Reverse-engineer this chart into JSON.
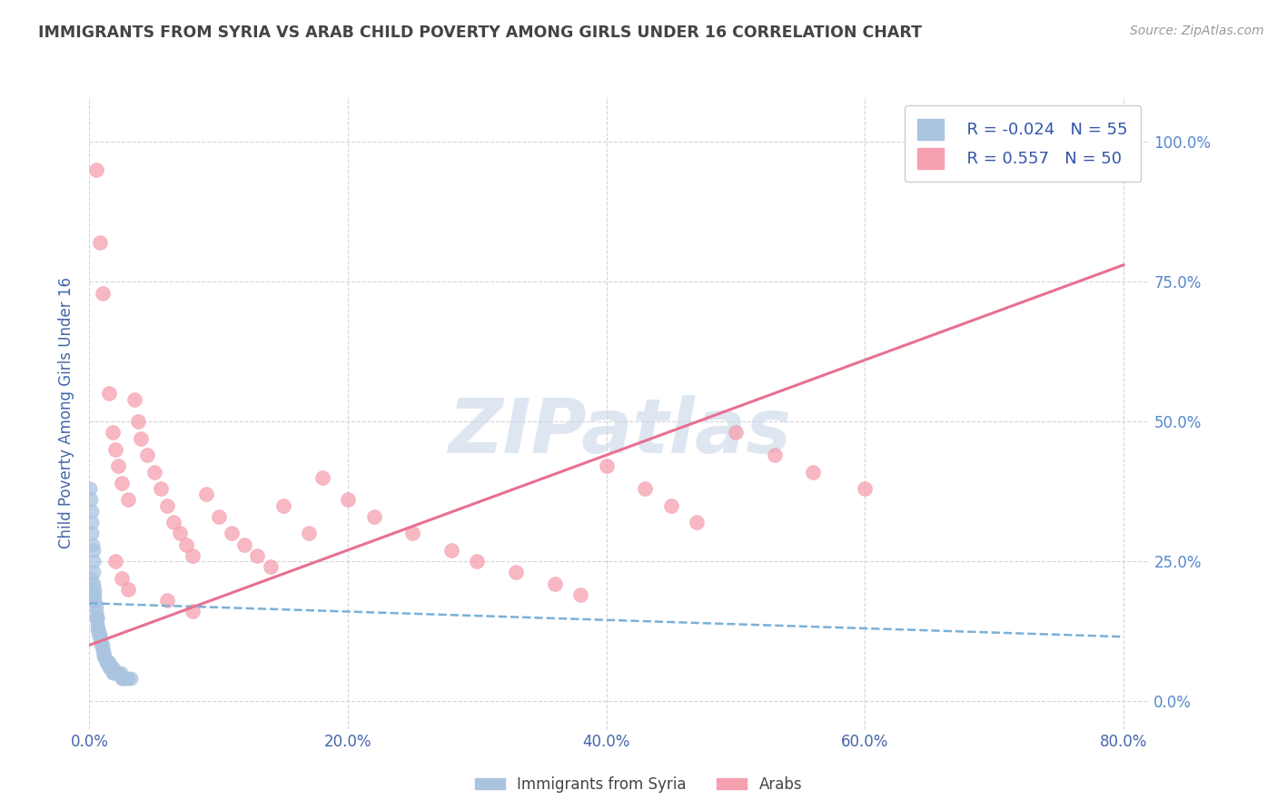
{
  "title": "IMMIGRANTS FROM SYRIA VS ARAB CHILD POVERTY AMONG GIRLS UNDER 16 CORRELATION CHART",
  "source": "Source: ZipAtlas.com",
  "ylabel": "Child Poverty Among Girls Under 16",
  "xlim": [
    0.0,
    0.82
  ],
  "ylim": [
    -0.05,
    1.08
  ],
  "yticks": [
    0.0,
    0.25,
    0.5,
    0.75,
    1.0
  ],
  "ytick_labels": [
    "0.0%",
    "25.0%",
    "50.0%",
    "75.0%",
    "100.0%"
  ],
  "xticks": [
    0.0,
    0.2,
    0.4,
    0.6,
    0.8
  ],
  "xtick_labels": [
    "0.0%",
    "20.0%",
    "40.0%",
    "60.0%",
    "80.0%"
  ],
  "legend_entries": [
    {
      "label": "Immigrants from Syria",
      "R": "-0.024",
      "N": "55",
      "color": "#aac4e0"
    },
    {
      "label": "Arabs",
      "R": "0.557",
      "N": "50",
      "color": "#f5a0b0"
    }
  ],
  "syria_scatter_x": [
    0.0005,
    0.001,
    0.0015,
    0.002,
    0.002,
    0.0025,
    0.003,
    0.003,
    0.003,
    0.003,
    0.004,
    0.004,
    0.004,
    0.005,
    0.005,
    0.005,
    0.006,
    0.006,
    0.006,
    0.007,
    0.007,
    0.008,
    0.008,
    0.009,
    0.009,
    0.01,
    0.01,
    0.011,
    0.011,
    0.012,
    0.012,
    0.013,
    0.013,
    0.014,
    0.015,
    0.015,
    0.016,
    0.016,
    0.017,
    0.018,
    0.018,
    0.019,
    0.02,
    0.021,
    0.022,
    0.024,
    0.025,
    0.026,
    0.028,
    0.03,
    0.032,
    0.001,
    0.002,
    0.003,
    0.006
  ],
  "syria_scatter_y": [
    0.38,
    0.36,
    0.34,
    0.32,
    0.3,
    0.28,
    0.27,
    0.25,
    0.23,
    0.21,
    0.2,
    0.19,
    0.18,
    0.17,
    0.16,
    0.15,
    0.15,
    0.14,
    0.13,
    0.13,
    0.12,
    0.12,
    0.11,
    0.11,
    0.1,
    0.1,
    0.09,
    0.09,
    0.08,
    0.08,
    0.08,
    0.07,
    0.07,
    0.07,
    0.07,
    0.06,
    0.06,
    0.06,
    0.06,
    0.06,
    0.05,
    0.05,
    0.05,
    0.05,
    0.05,
    0.05,
    0.04,
    0.04,
    0.04,
    0.04,
    0.04,
    0.22,
    0.2,
    0.18,
    0.15
  ],
  "arab_scatter_x": [
    0.005,
    0.008,
    0.01,
    0.015,
    0.018,
    0.02,
    0.022,
    0.025,
    0.03,
    0.035,
    0.038,
    0.04,
    0.045,
    0.05,
    0.055,
    0.06,
    0.065,
    0.07,
    0.075,
    0.08,
    0.09,
    0.1,
    0.11,
    0.12,
    0.13,
    0.14,
    0.15,
    0.17,
    0.18,
    0.2,
    0.22,
    0.25,
    0.28,
    0.3,
    0.33,
    0.36,
    0.38,
    0.4,
    0.43,
    0.45,
    0.47,
    0.5,
    0.53,
    0.56,
    0.6,
    0.02,
    0.025,
    0.03,
    0.06,
    0.08
  ],
  "arab_scatter_y": [
    0.95,
    0.82,
    0.73,
    0.55,
    0.48,
    0.45,
    0.42,
    0.39,
    0.36,
    0.54,
    0.5,
    0.47,
    0.44,
    0.41,
    0.38,
    0.35,
    0.32,
    0.3,
    0.28,
    0.26,
    0.37,
    0.33,
    0.3,
    0.28,
    0.26,
    0.24,
    0.35,
    0.3,
    0.4,
    0.36,
    0.33,
    0.3,
    0.27,
    0.25,
    0.23,
    0.21,
    0.19,
    0.42,
    0.38,
    0.35,
    0.32,
    0.48,
    0.44,
    0.41,
    0.38,
    0.25,
    0.22,
    0.2,
    0.18,
    0.16
  ],
  "syria_trend_x": [
    0.0,
    0.8
  ],
  "syria_trend_y": [
    0.175,
    0.115
  ],
  "arab_trend_x": [
    0.0,
    0.8
  ],
  "arab_trend_y": [
    0.1,
    0.78
  ],
  "watermark": "ZIPatlas",
  "watermark_color": "#c8d8e8",
  "bg_color": "#ffffff",
  "plot_bg_color": "#ffffff",
  "grid_color": "#d0d0d0",
  "title_color": "#444444",
  "axis_label_color": "#4466aa",
  "tick_color": "#4466aa",
  "syria_scatter_color": "#aac4e0",
  "arab_scatter_color": "#f5a0b0",
  "syria_line_color": "#7ab0d8",
  "arab_line_color": "#e87090",
  "right_tick_color": "#5588cc"
}
